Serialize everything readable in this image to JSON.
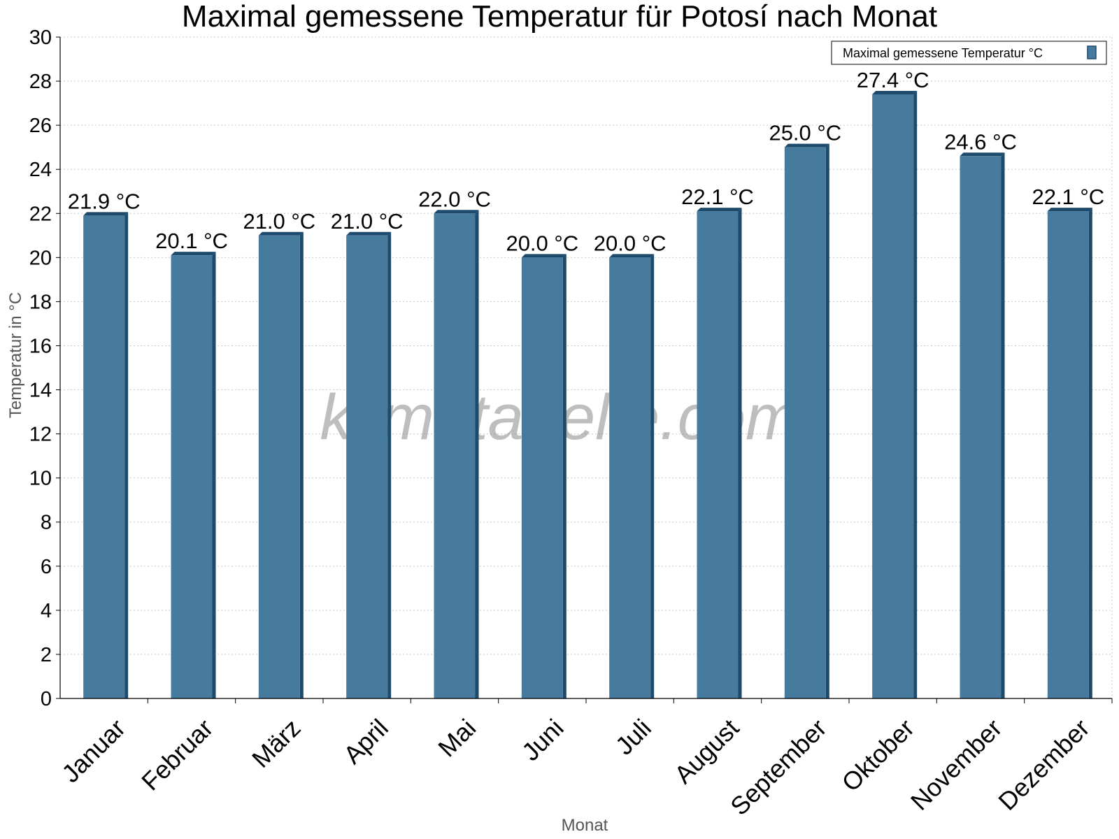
{
  "chart_data": {
    "type": "bar",
    "title": "Maximal gemessene Temperatur für Potosí nach Monat",
    "xlabel": "Monat",
    "ylabel": "Temperatur in °C",
    "categories": [
      "Januar",
      "Februar",
      "März",
      "April",
      "Mai",
      "Juni",
      "Juli",
      "August",
      "September",
      "Oktober",
      "November",
      "Dezember"
    ],
    "series": [
      {
        "name": "Maximal gemessene Temperatur °C",
        "values": [
          21.9,
          20.1,
          21.0,
          21.0,
          22.0,
          20.0,
          20.0,
          22.1,
          25.0,
          27.4,
          24.6,
          22.1
        ],
        "value_labels": [
          "21.9 °C",
          "20.1 °C",
          "21.0 °C",
          "21.0 °C",
          "22.0 °C",
          "20.0 °C",
          "20.0 °C",
          "22.1 °C",
          "25.0 °C",
          "27.4 °C",
          "24.6 °C",
          "22.1 °C"
        ]
      }
    ],
    "ylim": [
      0,
      30
    ],
    "yticks": [
      "0",
      "2",
      "4",
      "6",
      "8",
      "10",
      "12",
      "14",
      "16",
      "18",
      "20",
      "22",
      "24",
      "26",
      "28",
      "30"
    ],
    "grid": true,
    "legend_position": "top-right",
    "bar_color": "#467b9e",
    "bar_edge_color": "#1e4a6b"
  },
  "watermark": "klimatabelle.com"
}
